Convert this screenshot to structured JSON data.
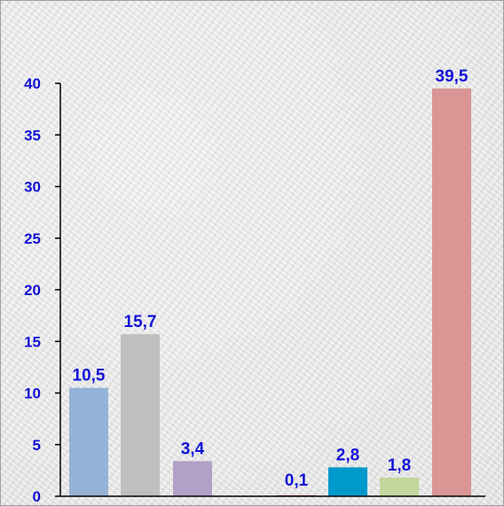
{
  "chart_data": {
    "type": "bar",
    "title": "",
    "xlabel": "",
    "ylabel": "",
    "ylim": [
      0,
      40
    ],
    "yticks": [
      0,
      5,
      10,
      15,
      20,
      25,
      30,
      35,
      40
    ],
    "ytick_labels": [
      "0",
      "5",
      "10",
      "15",
      "20",
      "25",
      "30",
      "35",
      "40"
    ],
    "grid": false,
    "legend": "none",
    "values": [
      10.5,
      15.7,
      3.4,
      0.1,
      2.8,
      1.8,
      39.5
    ],
    "value_labels": [
      "10,5",
      "15,7",
      "3,4",
      "0,1",
      "2,8",
      "1,8",
      "39,5"
    ],
    "colors": [
      "#95b3d7",
      "#bfbfbf",
      "#b1a0c7",
      "#c0504d",
      "#0099cc",
      "#c3d69b",
      "#d99694"
    ],
    "axis_color": "#000000",
    "label_color": "#1212d8"
  }
}
